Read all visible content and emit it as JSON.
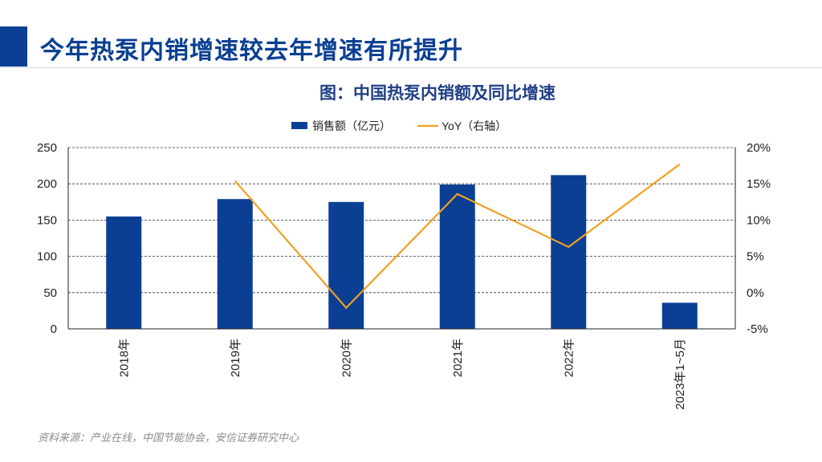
{
  "slide": {
    "title": "今年热泵内销增速较去年增速有所提升",
    "source": "资料来源：产业在线，中国节能协会，安信证券研究中心"
  },
  "colors": {
    "accent": "#0a3f93",
    "bar": "#0a3f93",
    "line": "#f0a020"
  },
  "chart_data": {
    "type": "bar",
    "title": "图：中国热泵内销额及同比增速",
    "categories": [
      "2018年",
      "2019年",
      "2020年",
      "2021年",
      "2022年",
      "2023年1~5月"
    ],
    "series": [
      {
        "name": "销售额（亿元）",
        "type": "bar",
        "axis": "left",
        "values": [
          155,
          179,
          175,
          199,
          212,
          36
        ]
      },
      {
        "name": "YoY（右轴）",
        "type": "line",
        "axis": "right",
        "values": [
          null,
          15.4,
          -2.1,
          13.6,
          6.3,
          17.7
        ]
      }
    ],
    "y_left": {
      "ylim": [
        0,
        250
      ],
      "ticks": [
        "0",
        "50",
        "100",
        "150",
        "200",
        "250"
      ]
    },
    "y_right": {
      "ylim": [
        -5,
        20
      ],
      "ticks": [
        "-5%",
        "0%",
        "5%",
        "10%",
        "15%",
        "20%"
      ]
    },
    "grid": true,
    "legend_position": "top-center"
  }
}
